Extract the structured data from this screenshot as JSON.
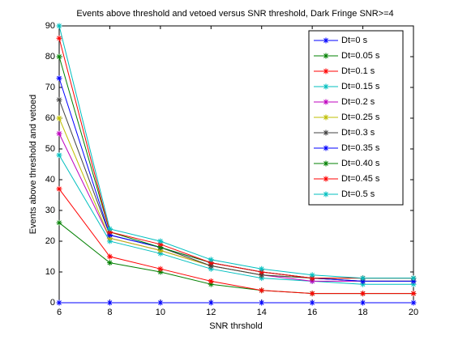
{
  "chart_data": {
    "type": "line",
    "title": "Events above threshold and vetoed versus SNR threshold, Dark Fringe SNR>=4",
    "x_label": "SNR thrshold",
    "y_label": "Events above threshold and vetoed",
    "x": [
      6,
      8,
      10,
      12,
      14,
      16,
      18,
      20
    ],
    "xlim": [
      6,
      20
    ],
    "xticks": [
      6,
      8,
      10,
      12,
      14,
      16,
      18,
      20
    ],
    "ylim": [
      0,
      90
    ],
    "yticks": [
      0,
      10,
      20,
      30,
      40,
      50,
      60,
      70,
      80,
      90
    ],
    "grid": false,
    "legend": "top-right",
    "series": [
      {
        "name": "Dt=0 s",
        "color": "#0000ff",
        "values": [
          0,
          0,
          0,
          0,
          0,
          0,
          0,
          0
        ]
      },
      {
        "name": "Dt=0.05 s",
        "color": "#008000",
        "values": [
          26,
          13,
          10,
          6,
          4,
          3,
          3,
          3
        ]
      },
      {
        "name": "Dt=0.1 s",
        "color": "#ff0000",
        "values": [
          37,
          15,
          11,
          7,
          4,
          3,
          3,
          3
        ]
      },
      {
        "name": "Dt=0.15 s",
        "color": "#00bfbf",
        "values": [
          48,
          20,
          16,
          11,
          8,
          7,
          6,
          6
        ]
      },
      {
        "name": "Dt=0.2 s",
        "color": "#bf00bf",
        "values": [
          55,
          21,
          17,
          12,
          9,
          7,
          7,
          7
        ]
      },
      {
        "name": "Dt=0.25 s",
        "color": "#bfbf00",
        "values": [
          60,
          21,
          17,
          12,
          9,
          8,
          7,
          7
        ]
      },
      {
        "name": "Dt=0.3 s",
        "color": "#404040",
        "values": [
          66,
          22,
          18,
          12,
          9,
          8,
          7,
          7
        ]
      },
      {
        "name": "Dt=0.35 s",
        "color": "#0000ff",
        "values": [
          73,
          22,
          18,
          13,
          10,
          8,
          7,
          7
        ]
      },
      {
        "name": "Dt=0.40 s",
        "color": "#008000",
        "values": [
          80,
          23,
          18,
          13,
          10,
          8,
          8,
          8
        ]
      },
      {
        "name": "Dt=0.45 s",
        "color": "#ff0000",
        "values": [
          86,
          23,
          19,
          13,
          10,
          8,
          8,
          8
        ]
      },
      {
        "name": "Dt=0.5 s",
        "color": "#00bfbf",
        "values": [
          90,
          24,
          20,
          14,
          11,
          9,
          8,
          8
        ]
      }
    ]
  }
}
